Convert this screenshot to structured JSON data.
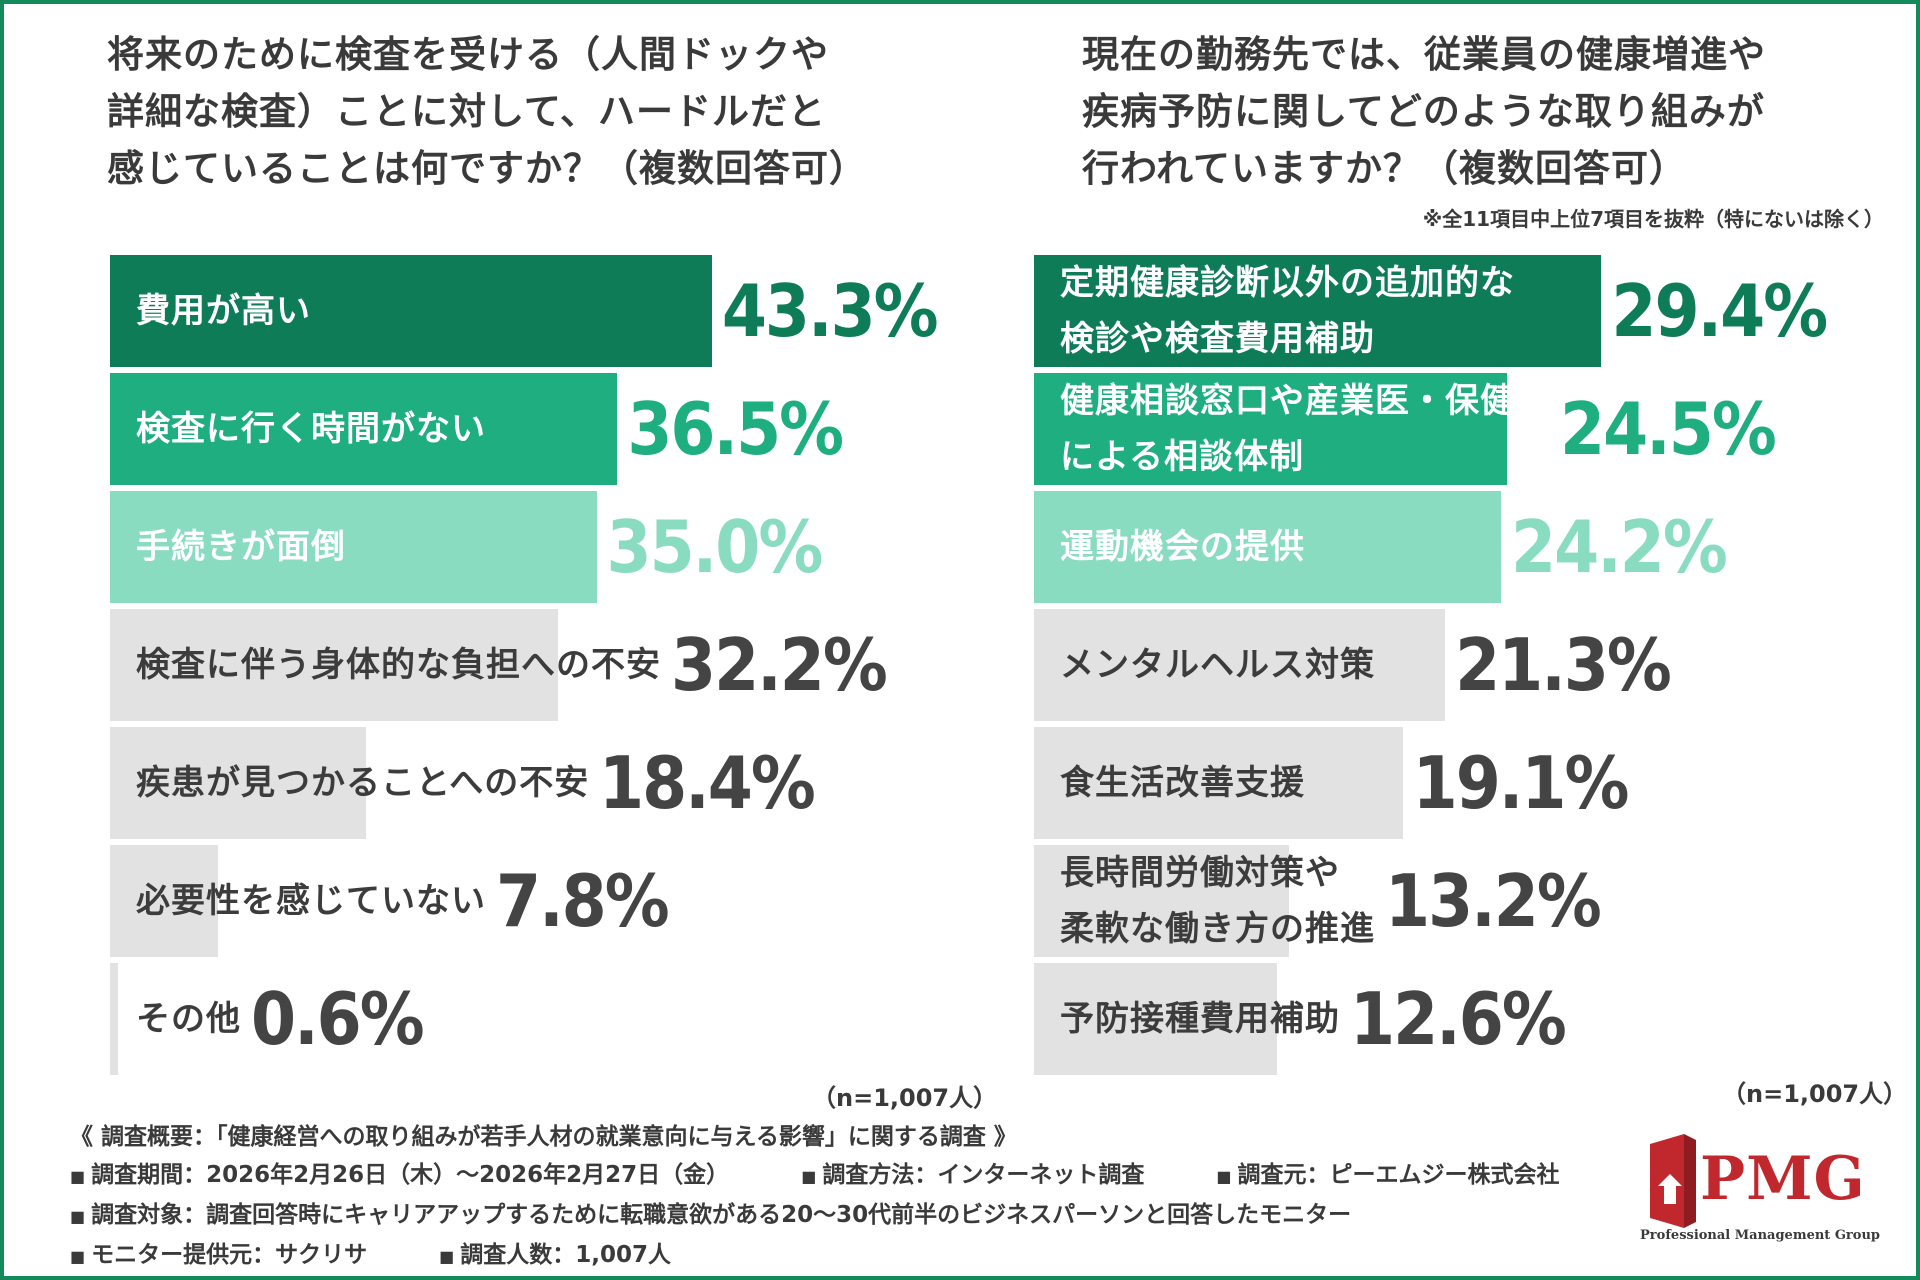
{
  "chart_data": [
    {
      "type": "bar",
      "orientation": "horizontal",
      "title": "将来のために検査を受ける（人間ドックや詳細な検査）ことに対して、ハードルだと感じていることは何ですか？（複数回答可）",
      "title_lines": [
        "将来のために検査を受ける（人間ドックや",
        "詳細な検査）ことに対して、ハードルだと",
        "感じていることは何ですか？（複数回答可）"
      ],
      "categories": [
        "費用が高い",
        "検査に行く時間がない",
        "手続きが面倒",
        "検査に伴う身体的な負担への不安",
        "疾患が見つかることへの不安",
        "必要性を感じていない",
        "その他"
      ],
      "values": [
        43.3,
        36.5,
        35.0,
        32.2,
        18.4,
        7.8,
        0.6
      ],
      "value_labels": [
        "43.3%",
        "36.5%",
        "35.0%",
        "32.2%",
        "18.4%",
        "7.8%",
        "0.6%"
      ],
      "unit": "%",
      "sample_size": "（n=1,007人）"
    },
    {
      "type": "bar",
      "orientation": "horizontal",
      "title": "現在の勤務先では、従業員の健康増進や疾病予防に関してどのような取り組みが行われていますか？（複数回答可）",
      "title_lines": [
        "現在の勤務先では、従業員の健康増進や",
        "疾病予防に関してどのような取り組みが",
        "行われていますか？（複数回答可）"
      ],
      "note": "※全11項目中上位7項目を抜粋（特にないは除く）",
      "categories": [
        "定期健康診断以外の追加的な\n検診や検査費用補助",
        "健康相談窓口や産業医・保健師\nによる相談体制",
        "運動機会の提供",
        "メンタルヘルス対策",
        "食生活改善支援",
        "長時間労働対策や\n柔軟な働き方の推進",
        "予防接種費用補助"
      ],
      "values": [
        29.4,
        24.5,
        24.2,
        21.3,
        19.1,
        13.2,
        12.6
      ],
      "value_labels": [
        "29.4%",
        "24.5%",
        "24.2%",
        "21.3%",
        "19.1%",
        "13.2%",
        "12.6%"
      ],
      "unit": "%",
      "sample_size": "（n=1,007人）"
    }
  ],
  "colors": {
    "rank1": "#0e7c56",
    "rank2": "#1fae7f",
    "rank3": "#8adcc0",
    "other_bar": "#e2e2e2",
    "border": "#138a5c",
    "logo": "#c0282d"
  },
  "footer": {
    "overview": "《 調査概要：「健康経営への取り組みが若手人材の就業意向に与える影響」に関する調査 》",
    "period": "調査期間：2026年2月26日（木）～2026年2月27日（金）",
    "method": "調査方法：インターネット調査",
    "source": "調査元：ピーエムジー株式会社",
    "target": "調査対象：調査回答時にキャリアアップするために転職意欲がある20～30代前半のビジネスパーソンと回答したモニター",
    "provider": "モニター提供元：サクリサ",
    "count": "調査人数：1,007人",
    "bullet": "■"
  },
  "logo": {
    "name": "PMG",
    "subtitle": "Professional Management Group"
  }
}
